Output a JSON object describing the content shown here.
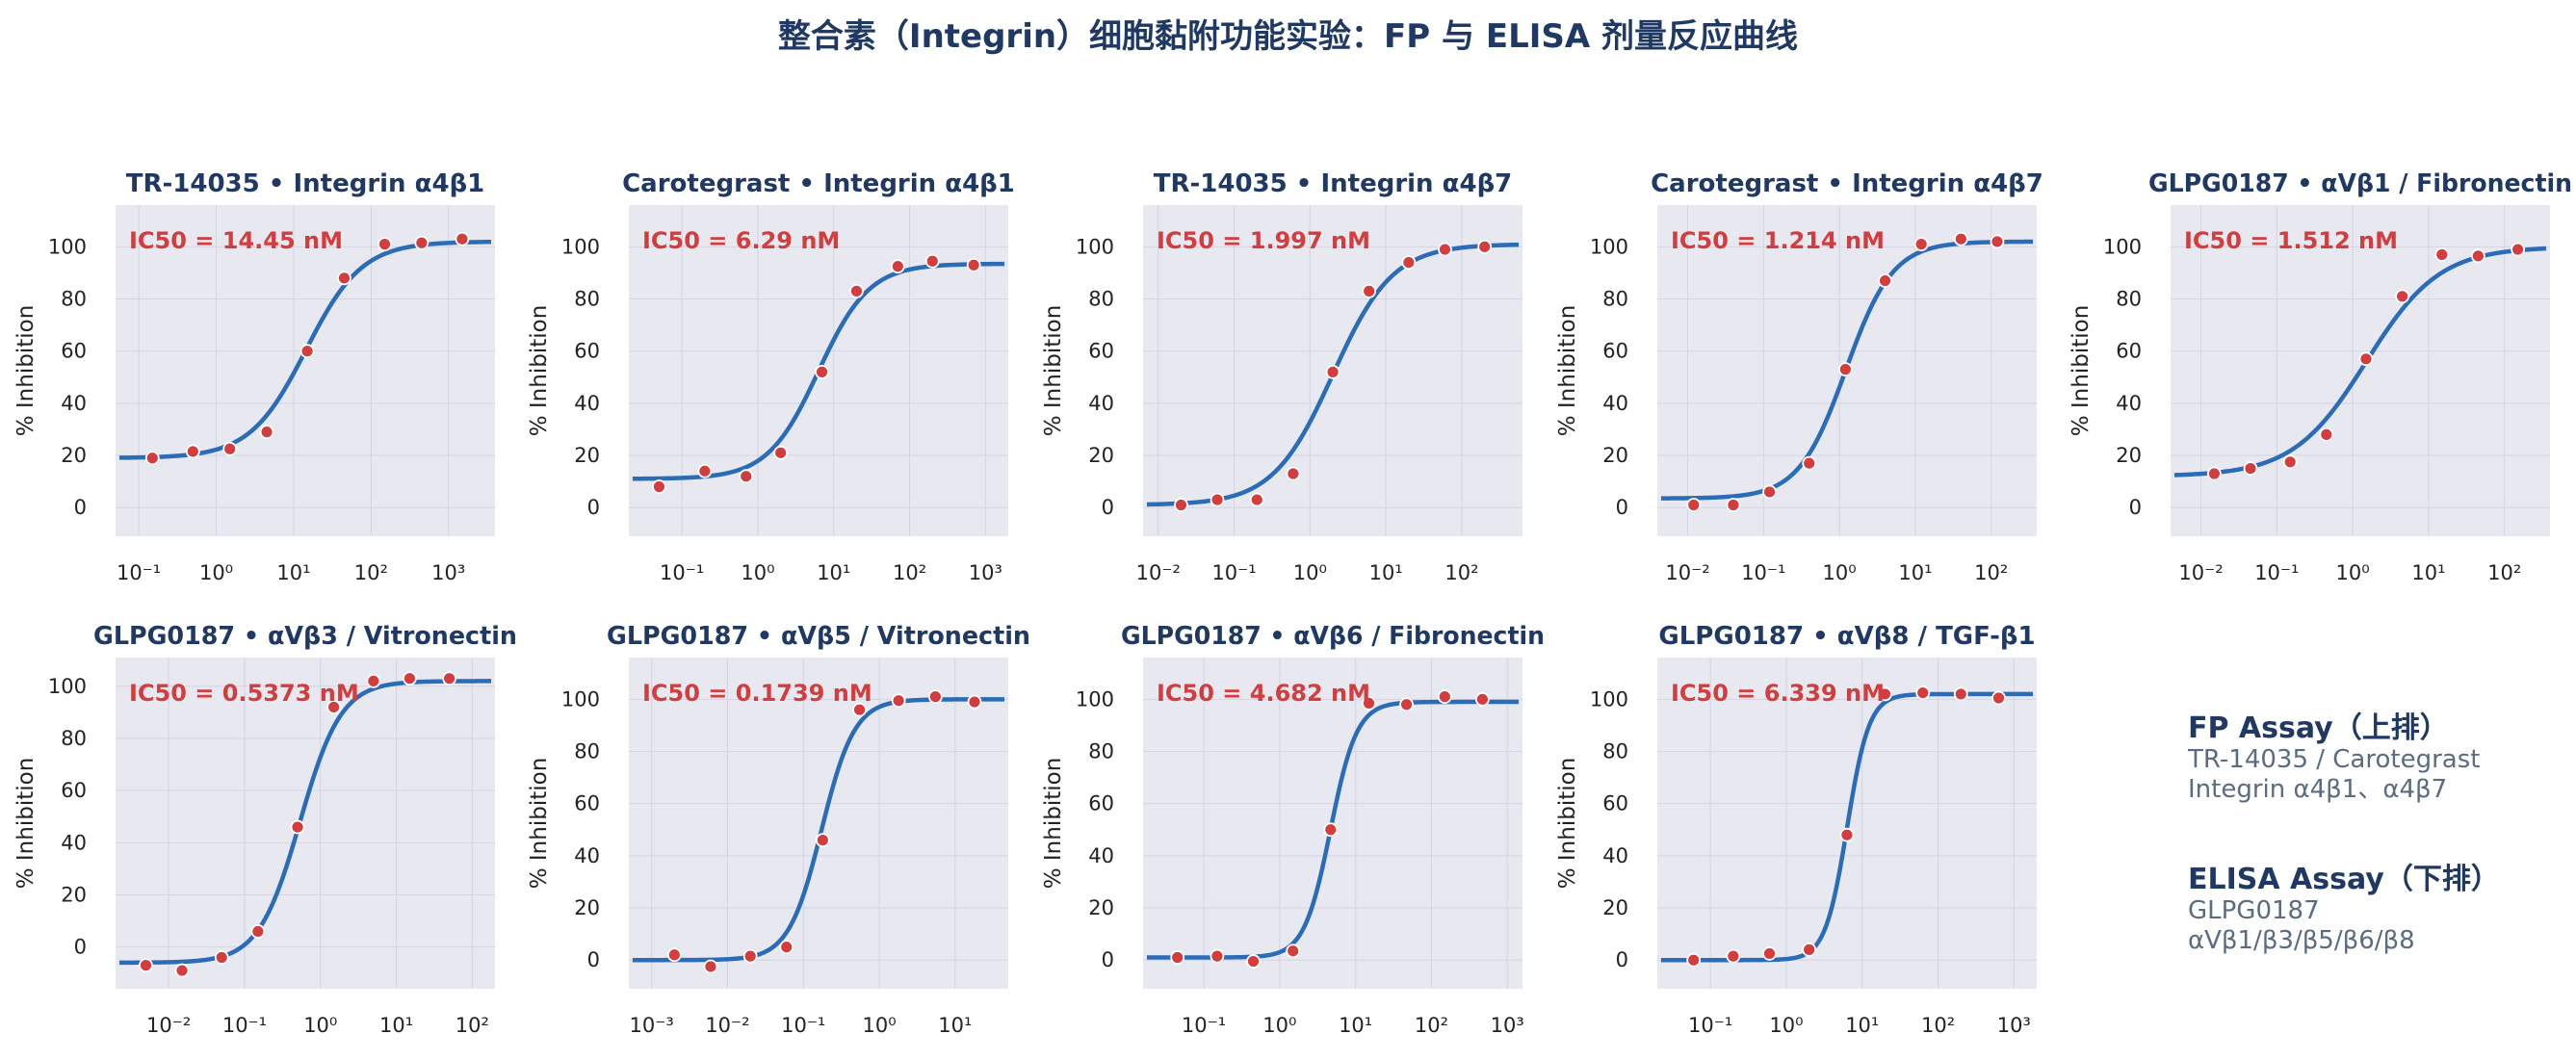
{
  "title": "整合素（Integrin）细胞黏附功能实验：FP 与 ELISA 剂量反应曲线",
  "colors": {
    "panel_bg": "#e8e8f1",
    "curve": "#2b6cb8",
    "points": "#d43d3d",
    "ic50_text": "#d43d3d",
    "title_text": "#1f3864"
  },
  "legend": {
    "fp": {
      "title": "FP Assay（上排）",
      "line1": "TR-14035 / Carotegrast",
      "line2": "Integrin α4β1、α4β7"
    },
    "elisa": {
      "title": "ELISA Assay（下排）",
      "line1": "GLPG0187",
      "line2": "αVβ1/β3/β5/β6/β8"
    }
  },
  "chart_data": [
    {
      "type": "line",
      "title": "TR-14035 • Integrin α4β1",
      "ylabel": "% Inhibition",
      "xscale": "log",
      "xlim": [
        -1.3,
        3.6
      ],
      "ylim": [
        -11,
        116
      ],
      "yticks": [
        0,
        20,
        40,
        60,
        80,
        100
      ],
      "xtick_exps": [
        -1,
        0,
        1,
        2,
        3
      ],
      "ic50_label": "IC50 = 14.45 nM",
      "fit": {
        "bottom": 19,
        "top": 102,
        "ic50": 14.45,
        "hill": 1.2
      },
      "points": [
        {
          "x": 0.15,
          "y": 19
        },
        {
          "x": 0.5,
          "y": 21.5
        },
        {
          "x": 1.5,
          "y": 22.5
        },
        {
          "x": 4.5,
          "y": 29
        },
        {
          "x": 15,
          "y": 60
        },
        {
          "x": 45,
          "y": 88
        },
        {
          "x": 150,
          "y": 101
        },
        {
          "x": 450,
          "y": 101.5
        },
        {
          "x": 1500,
          "y": 103
        }
      ]
    },
    {
      "type": "line",
      "title": "Carotegrast • Integrin α4β1",
      "ylabel": "% Inhibition",
      "xscale": "log",
      "xlim": [
        -1.7,
        3.3
      ],
      "ylim": [
        -11,
        116
      ],
      "yticks": [
        0,
        20,
        40,
        60,
        80,
        100
      ],
      "xtick_exps": [
        -1,
        0,
        1,
        2,
        3
      ],
      "ic50_label": "IC50 = 6.29 nM",
      "fit": {
        "bottom": 11,
        "top": 93.5,
        "ic50": 6.29,
        "hill": 1.3
      },
      "points": [
        {
          "x": 0.05,
          "y": 8
        },
        {
          "x": 0.2,
          "y": 14
        },
        {
          "x": 0.7,
          "y": 12
        },
        {
          "x": 2,
          "y": 21
        },
        {
          "x": 7,
          "y": 52
        },
        {
          "x": 20,
          "y": 83
        },
        {
          "x": 70,
          "y": 92.5
        },
        {
          "x": 200,
          "y": 94.5
        },
        {
          "x": 700,
          "y": 93
        }
      ]
    },
    {
      "type": "line",
      "title": "TR-14035 • Integrin α4β7",
      "ylabel": "% Inhibition",
      "xscale": "log",
      "xlim": [
        -2.2,
        2.8
      ],
      "ylim": [
        -11,
        116
      ],
      "yticks": [
        0,
        20,
        40,
        60,
        80,
        100
      ],
      "xtick_exps": [
        -2,
        -1,
        0,
        1,
        2
      ],
      "ic50_label": "IC50 = 1.997 nM",
      "fit": {
        "bottom": 1,
        "top": 101,
        "ic50": 1.997,
        "hill": 1.1
      },
      "points": [
        {
          "x": 0.02,
          "y": 1
        },
        {
          "x": 0.06,
          "y": 3
        },
        {
          "x": 0.2,
          "y": 3
        },
        {
          "x": 0.6,
          "y": 13
        },
        {
          "x": 2,
          "y": 52
        },
        {
          "x": 6,
          "y": 83
        },
        {
          "x": 20,
          "y": 94
        },
        {
          "x": 60,
          "y": 99
        },
        {
          "x": 200,
          "y": 100
        }
      ]
    },
    {
      "type": "line",
      "title": "Carotegrast • Integrin α4β7",
      "ylabel": "% Inhibition",
      "xscale": "log",
      "xlim": [
        -2.4,
        2.6
      ],
      "ylim": [
        -11,
        116
      ],
      "yticks": [
        0,
        20,
        40,
        60,
        80,
        100
      ],
      "xtick_exps": [
        -2,
        -1,
        0,
        1,
        2
      ],
      "ic50_label": "IC50 = 1.214 nM",
      "fit": {
        "bottom": 3.5,
        "top": 102,
        "ic50": 1.214,
        "hill": 1.4
      },
      "points": [
        {
          "x": 0.012,
          "y": 1
        },
        {
          "x": 0.04,
          "y": 1
        },
        {
          "x": 0.12,
          "y": 6
        },
        {
          "x": 0.4,
          "y": 17
        },
        {
          "x": 1.2,
          "y": 53
        },
        {
          "x": 4,
          "y": 87
        },
        {
          "x": 12,
          "y": 101
        },
        {
          "x": 40,
          "y": 103
        },
        {
          "x": 120,
          "y": 102
        }
      ]
    },
    {
      "type": "line",
      "title": "GLPG0187 • αVβ1 / Fibronectin",
      "ylabel": "% Inhibition",
      "xscale": "log",
      "xlim": [
        -2.4,
        2.6
      ],
      "ylim": [
        -11,
        116
      ],
      "yticks": [
        0,
        20,
        40,
        60,
        80,
        100
      ],
      "xtick_exps": [
        -2,
        -1,
        0,
        1,
        2
      ],
      "ic50_label": "IC50 = 1.512 nM",
      "fit": {
        "bottom": 12,
        "top": 100,
        "ic50": 1.512,
        "hill": 0.9
      },
      "points": [
        {
          "x": 0.015,
          "y": 13
        },
        {
          "x": 0.045,
          "y": 15
        },
        {
          "x": 0.15,
          "y": 17.5
        },
        {
          "x": 0.45,
          "y": 28
        },
        {
          "x": 1.5,
          "y": 57
        },
        {
          "x": 4.5,
          "y": 81
        },
        {
          "x": 15,
          "y": 97
        },
        {
          "x": 45,
          "y": 96.5
        },
        {
          "x": 150,
          "y": 99
        }
      ]
    },
    {
      "type": "line",
      "title": "GLPG0187 • αVβ3 / Vitronectin",
      "ylabel": "% Inhibition",
      "xscale": "log",
      "xlim": [
        -2.7,
        2.3
      ],
      "ylim": [
        -16,
        111
      ],
      "yticks": [
        0,
        20,
        40,
        60,
        80,
        100
      ],
      "xtick_exps": [
        -2,
        -1,
        0,
        1,
        2
      ],
      "ic50_label": "IC50 = 0.5373 nM",
      "fit": {
        "bottom": -6,
        "top": 102,
        "ic50": 0.5373,
        "hill": 1.6
      },
      "points": [
        {
          "x": 0.005,
          "y": -7
        },
        {
          "x": 0.015,
          "y": -9
        },
        {
          "x": 0.05,
          "y": -4
        },
        {
          "x": 0.15,
          "y": 6
        },
        {
          "x": 0.5,
          "y": 46
        },
        {
          "x": 1.5,
          "y": 92
        },
        {
          "x": 5,
          "y": 102
        },
        {
          "x": 15,
          "y": 103
        },
        {
          "x": 50,
          "y": 103
        }
      ]
    },
    {
      "type": "line",
      "title": "GLPG0187 • αVβ5 / Vitronectin",
      "ylabel": "% Inhibition",
      "xscale": "log",
      "xlim": [
        -3.3,
        1.7
      ],
      "ylim": [
        -11,
        116
      ],
      "yticks": [
        0,
        20,
        40,
        60,
        80,
        100
      ],
      "xtick_exps": [
        -3,
        -2,
        -1,
        0,
        1
      ],
      "ic50_label": "IC50 = 0.1739 nM",
      "fit": {
        "bottom": 0,
        "top": 100,
        "ic50": 0.1739,
        "hill": 2.0
      },
      "points": [
        {
          "x": 0.002,
          "y": 2
        },
        {
          "x": 0.006,
          "y": -2.5
        },
        {
          "x": 0.02,
          "y": 1.5
        },
        {
          "x": 0.06,
          "y": 5
        },
        {
          "x": 0.18,
          "y": 46
        },
        {
          "x": 0.55,
          "y": 96
        },
        {
          "x": 1.8,
          "y": 99.5
        },
        {
          "x": 5.5,
          "y": 101
        },
        {
          "x": 18,
          "y": 99
        }
      ]
    },
    {
      "type": "line",
      "title": "GLPG0187 • αVβ6 / Fibronectin",
      "ylabel": "% Inhibition",
      "xscale": "log",
      "xlim": [
        -1.8,
        3.2
      ],
      "ylim": [
        -11,
        116
      ],
      "yticks": [
        0,
        20,
        40,
        60,
        80,
        100
      ],
      "xtick_exps": [
        -1,
        0,
        1,
        2,
        3
      ],
      "ic50_label": "IC50 = 4.682 nM",
      "fit": {
        "bottom": 1,
        "top": 99,
        "ic50": 4.682,
        "hill": 2.5
      },
      "points": [
        {
          "x": 0.045,
          "y": 1
        },
        {
          "x": 0.15,
          "y": 1.5
        },
        {
          "x": 0.45,
          "y": -0.5
        },
        {
          "x": 1.5,
          "y": 3.5
        },
        {
          "x": 4.7,
          "y": 50
        },
        {
          "x": 15,
          "y": 98.5
        },
        {
          "x": 47,
          "y": 98
        },
        {
          "x": 150,
          "y": 101
        },
        {
          "x": 470,
          "y": 100
        }
      ]
    },
    {
      "type": "line",
      "title": "GLPG0187 • αVβ8 / TGF-β1",
      "ylabel": "% Inhibition",
      "xscale": "log",
      "xlim": [
        -1.7,
        3.3
      ],
      "ylim": [
        -11,
        116
      ],
      "yticks": [
        0,
        20,
        40,
        60,
        80,
        100
      ],
      "xtick_exps": [
        -1,
        0,
        1,
        2,
        3
      ],
      "ic50_label": "IC50 = 6.339 nM",
      "fit": {
        "bottom": 0,
        "top": 102,
        "ic50": 6.339,
        "hill": 3.0
      },
      "points": [
        {
          "x": 0.06,
          "y": 0
        },
        {
          "x": 0.2,
          "y": 1.5
        },
        {
          "x": 0.6,
          "y": 2.5
        },
        {
          "x": 2,
          "y": 4
        },
        {
          "x": 6.3,
          "y": 48
        },
        {
          "x": 20,
          "y": 102
        },
        {
          "x": 63,
          "y": 102.5
        },
        {
          "x": 200,
          "y": 102
        },
        {
          "x": 630,
          "y": 100.5
        }
      ]
    }
  ]
}
